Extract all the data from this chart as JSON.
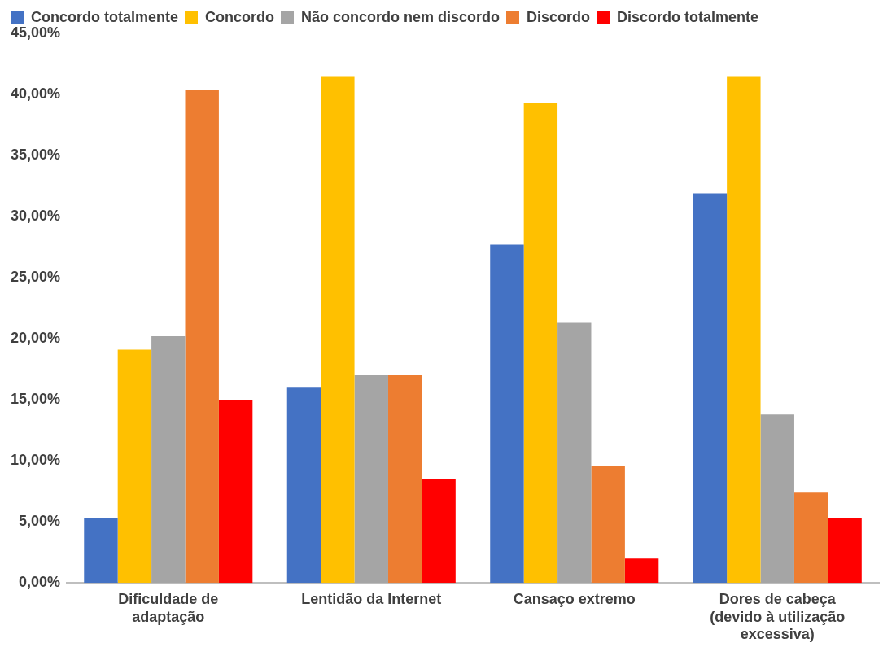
{
  "chart_data": {
    "type": "bar",
    "categories": [
      "Dificuldade de adaptação",
      "Lentidão da Internet",
      "Cansaço extremo",
      "Dores de cabeça (devido à utilização excessiva)"
    ],
    "series": [
      {
        "name": "Concordo totalmente",
        "color": "#4472c4",
        "values": [
          5.3,
          16.0,
          27.7,
          31.9
        ]
      },
      {
        "name": "Concordo",
        "color": "#ffc000",
        "values": [
          19.1,
          41.5,
          39.3,
          41.5
        ]
      },
      {
        "name": "Não concordo nem discordo",
        "color": "#a5a5a5",
        "values": [
          20.2,
          17.0,
          21.3,
          13.8
        ]
      },
      {
        "name": "Discordo",
        "color": "#ed7d31",
        "values": [
          40.4,
          17.0,
          9.6,
          7.4
        ]
      },
      {
        "name": "Discordo totalmente",
        "color": "#ff0000",
        "values": [
          15.0,
          8.5,
          2.0,
          5.3
        ]
      }
    ],
    "ylim": [
      0,
      45
    ],
    "yticks": [
      {
        "value": 0,
        "label": "0,00%"
      },
      {
        "value": 5,
        "label": "5,00%"
      },
      {
        "value": 10,
        "label": "10,00%"
      },
      {
        "value": 15,
        "label": "15,00%"
      },
      {
        "value": 20,
        "label": "20,00%"
      },
      {
        "value": 25,
        "label": "25,00%"
      },
      {
        "value": 30,
        "label": "30,00%"
      },
      {
        "value": 35,
        "label": "35,00%"
      },
      {
        "value": 40,
        "label": "40,00%"
      },
      {
        "value": 45,
        "label": "45,00%"
      }
    ],
    "grid": false,
    "legend": "top"
  }
}
